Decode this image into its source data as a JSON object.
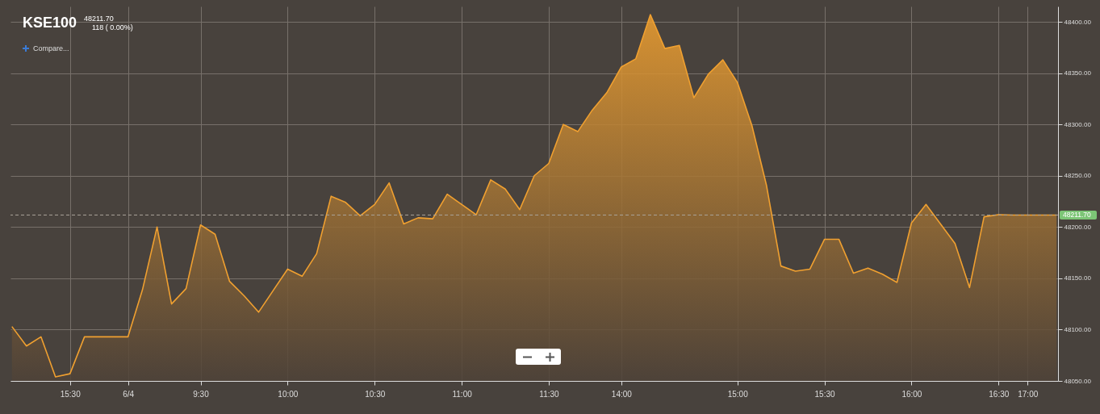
{
  "chart_data": {
    "type": "area",
    "title": "KSE100",
    "subtitle": "48211.70",
    "annotations": [
      "118 ( 0.00%)",
      "Compare..."
    ],
    "categories": [
      null,
      null,
      null,
      null,
      "15:30",
      null,
      null,
      null,
      "6/4",
      null,
      null,
      null,
      null,
      "9:30",
      null,
      null,
      null,
      null,
      null,
      "10:00",
      null,
      null,
      null,
      null,
      null,
      "10:30",
      null,
      null,
      null,
      null,
      null,
      "11:00",
      null,
      null,
      null,
      null,
      null,
      "11:30",
      null,
      null,
      null,
      null,
      "14:00",
      null,
      null,
      null,
      null,
      null,
      null,
      null,
      "15:00",
      null,
      null,
      null,
      null,
      null,
      "15:30",
      null,
      null,
      null,
      null,
      null,
      "16:00",
      null,
      null,
      null,
      null,
      null,
      "16:30",
      null,
      "17:00",
      null,
      null
    ],
    "series": [
      {
        "color": "#f0a030",
        "values": [
          48103,
          48084,
          48093,
          48054,
          48057,
          48093,
          48093,
          48093,
          48093,
          48139,
          48200,
          48125,
          48140,
          48202,
          48193,
          48147,
          48133,
          48117,
          48138,
          48159,
          48152,
          48174,
          48230,
          48224,
          48211,
          48222,
          48243,
          48203,
          48209,
          48208,
          48232,
          48222,
          48212,
          48246,
          48237,
          48217,
          48250,
          48262,
          48300,
          48293,
          48314,
          48331,
          48356,
          48364,
          48407,
          48374,
          48377,
          48326,
          48349,
          48363,
          48341,
          48299,
          48241,
          48162,
          48157,
          48159,
          48188,
          48188,
          48155,
          48160,
          48154,
          48146,
          48204,
          48222,
          48203,
          48184,
          48141,
          48210,
          48212,
          48211.7,
          48211.7,
          48211.7,
          48211.7
        ]
      }
    ],
    "ylim": [
      48050,
      48415
    ],
    "yticks": [
      {
        "value": 48050,
        "label": "48050.00"
      },
      {
        "value": 48100,
        "label": "48100.00"
      },
      {
        "value": 48150,
        "label": "48150.00"
      },
      {
        "value": 48200,
        "label": "48200.00"
      },
      {
        "value": 48250,
        "label": "48250.00"
      },
      {
        "value": 48300,
        "label": "48300.00"
      },
      {
        "value": 48350,
        "label": "48350.00"
      },
      {
        "value": 48400,
        "label": "48400.00"
      }
    ],
    "grid": true,
    "ref_lines": [
      {
        "axis": "y",
        "value": 48211.7,
        "label": "48211.70",
        "line_style": "dashed"
      }
    ]
  }
}
